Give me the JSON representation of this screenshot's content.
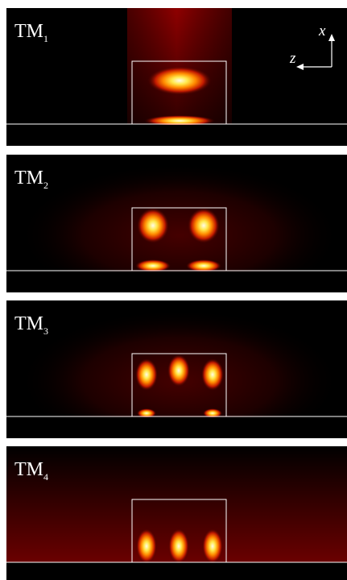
{
  "panels": [
    {
      "label": "TM",
      "subscript": "1"
    },
    {
      "label": "TM",
      "subscript": "2"
    },
    {
      "label": "TM",
      "subscript": "3"
    },
    {
      "label": "TM",
      "subscript": "4"
    }
  ],
  "axes": {
    "x": "x",
    "z": "z"
  }
}
